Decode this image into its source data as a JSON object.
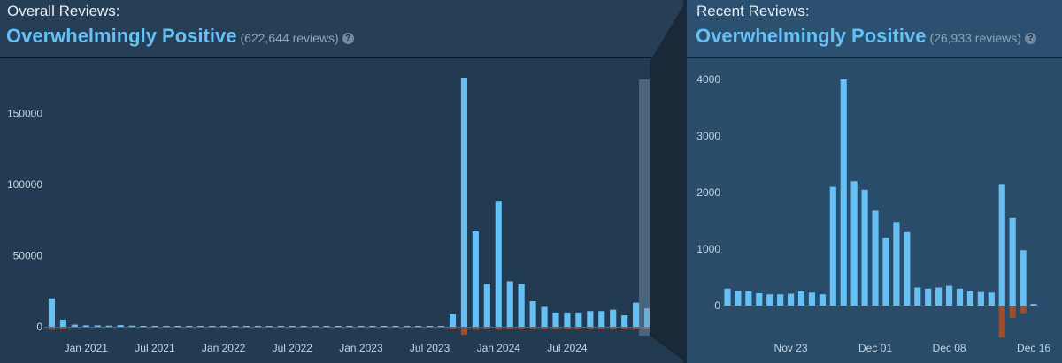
{
  "overall": {
    "label": "Overall Reviews:",
    "summary": "Overwhelmingly Positive",
    "count": "(622,644 reviews)",
    "help_icon": "?"
  },
  "recent": {
    "label": "Recent Reviews:",
    "summary": "Overwhelmingly Positive",
    "count": "(26,933 reviews)",
    "help_icon": "?"
  },
  "colors": {
    "positive": "#66c0f4",
    "negative": "#a34c25",
    "background": "#1b2838",
    "accent_text": "#66c0f4"
  },
  "chart_data": [
    {
      "type": "bar",
      "ylim": [
        0,
        175000
      ],
      "yticks": [
        0,
        50000,
        100000,
        150000
      ],
      "xtick_labels": [
        "Jan 2021",
        "Jul 2021",
        "Jan 2022",
        "Jul 2022",
        "Jan 2023",
        "Jul 2023",
        "Jan 2024",
        "Jul 2024"
      ],
      "xtick_positions": [
        3,
        9,
        15,
        21,
        27,
        33,
        39,
        45
      ],
      "positive": [
        20000,
        5000,
        1500,
        1000,
        1000,
        800,
        1200,
        800,
        600,
        500,
        500,
        500,
        500,
        500,
        500,
        500,
        500,
        500,
        500,
        500,
        500,
        500,
        500,
        500,
        500,
        500,
        500,
        500,
        500,
        500,
        500,
        500,
        500,
        500,
        500,
        9000,
        175000,
        67000,
        30000,
        88000,
        32000,
        30000,
        18000,
        14000,
        10000,
        10000,
        10000,
        11000,
        11000,
        12000,
        8000,
        17000,
        13000
      ],
      "negative": [
        1500,
        500,
        0,
        0,
        0,
        0,
        0,
        0,
        0,
        0,
        0,
        0,
        0,
        0,
        0,
        0,
        0,
        0,
        0,
        0,
        0,
        0,
        0,
        0,
        0,
        0,
        0,
        0,
        0,
        0,
        0,
        0,
        0,
        0,
        0,
        500,
        5000,
        1500,
        500,
        1500,
        600,
        500,
        400,
        300,
        300,
        300,
        300,
        300,
        300,
        300,
        300,
        400,
        300
      ]
    },
    {
      "type": "bar",
      "ylim": [
        0,
        4000
      ],
      "yticks": [
        0,
        1000,
        2000,
        3000,
        4000
      ],
      "xtick_labels": [
        "Nov 23",
        "Dec 01",
        "Dec 08",
        "Dec 16"
      ],
      "xtick_positions": [
        6,
        14,
        21,
        29
      ],
      "positive": [
        300,
        260,
        250,
        220,
        200,
        200,
        210,
        250,
        230,
        200,
        2100,
        4000,
        2200,
        2050,
        1680,
        1200,
        1480,
        1300,
        320,
        300,
        320,
        350,
        300,
        250,
        240,
        230,
        2150,
        1550,
        980,
        30
      ],
      "negative": [
        0,
        0,
        0,
        0,
        0,
        0,
        0,
        0,
        0,
        0,
        0,
        0,
        0,
        0,
        0,
        0,
        0,
        0,
        0,
        0,
        0,
        0,
        0,
        0,
        0,
        0,
        550,
        200,
        120,
        0
      ]
    }
  ]
}
